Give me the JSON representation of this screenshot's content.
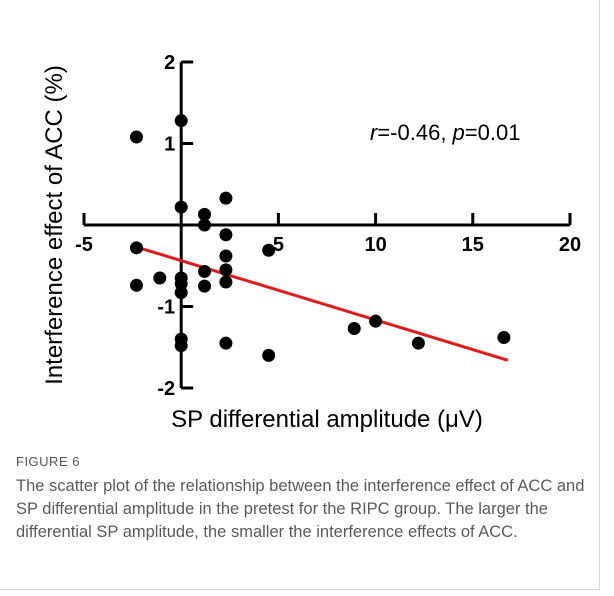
{
  "chart_data": {
    "type": "scatter",
    "xlabel": "SP differential amplitude (μV)",
    "ylabel": "Interference effect of ACC (%)",
    "xlim": [
      -5,
      20
    ],
    "ylim": [
      -2,
      2
    ],
    "x_ticks": [
      -5,
      5,
      10,
      15,
      20
    ],
    "y_ticks": [
      2,
      1,
      -1,
      -2
    ],
    "x_tick_labels": [
      "-5",
      "5",
      "10",
      "15",
      "20"
    ],
    "y_tick_labels": [
      "2",
      "1",
      "-1",
      "-2"
    ],
    "annotation": {
      "r_symbol": "r",
      "r_value": "=-0.46, ",
      "p_symbol": "p",
      "p_value": "=0.01"
    },
    "series": [
      {
        "points": [
          {
            "x": -2.3,
            "y": 1.08
          },
          {
            "x": -2.3,
            "y": -0.28
          },
          {
            "x": -2.3,
            "y": -0.74
          },
          {
            "x": -1.1,
            "y": -0.65
          },
          {
            "x": 0.0,
            "y": 1.28
          },
          {
            "x": 0.0,
            "y": 0.22
          },
          {
            "x": 0.0,
            "y": -0.65
          },
          {
            "x": 0.0,
            "y": -0.72
          },
          {
            "x": 0.0,
            "y": -0.83
          },
          {
            "x": 0.0,
            "y": -1.4
          },
          {
            "x": 0.0,
            "y": -1.48
          },
          {
            "x": 1.2,
            "y": 0.13
          },
          {
            "x": 1.2,
            "y": 0.0
          },
          {
            "x": 1.2,
            "y": -0.57
          },
          {
            "x": 1.2,
            "y": -0.75
          },
          {
            "x": 2.3,
            "y": 0.33
          },
          {
            "x": 2.3,
            "y": -0.12
          },
          {
            "x": 2.3,
            "y": -0.38
          },
          {
            "x": 2.3,
            "y": -0.55
          },
          {
            "x": 2.3,
            "y": -0.7
          },
          {
            "x": 2.3,
            "y": -1.45
          },
          {
            "x": 4.5,
            "y": -0.31
          },
          {
            "x": 4.5,
            "y": -1.6
          },
          {
            "x": 8.9,
            "y": -1.27
          },
          {
            "x": 10.0,
            "y": -1.18
          },
          {
            "x": 12.2,
            "y": -1.45
          },
          {
            "x": 16.6,
            "y": -1.38
          }
        ]
      }
    ],
    "fit_line": {
      "x": [
        -2.3,
        16.8
      ],
      "y": [
        -0.27,
        -1.66
      ],
      "color": "#e31a1c"
    },
    "point_color": "#000000",
    "grid": false
  },
  "caption": {
    "label": "FIGURE 6",
    "text": "The scatter plot of the relationship between the interference effect of ACC and SP differential amplitude in the pretest for the RIPC group. The larger the differential SP amplitude, the smaller the interference effects of ACC."
  }
}
